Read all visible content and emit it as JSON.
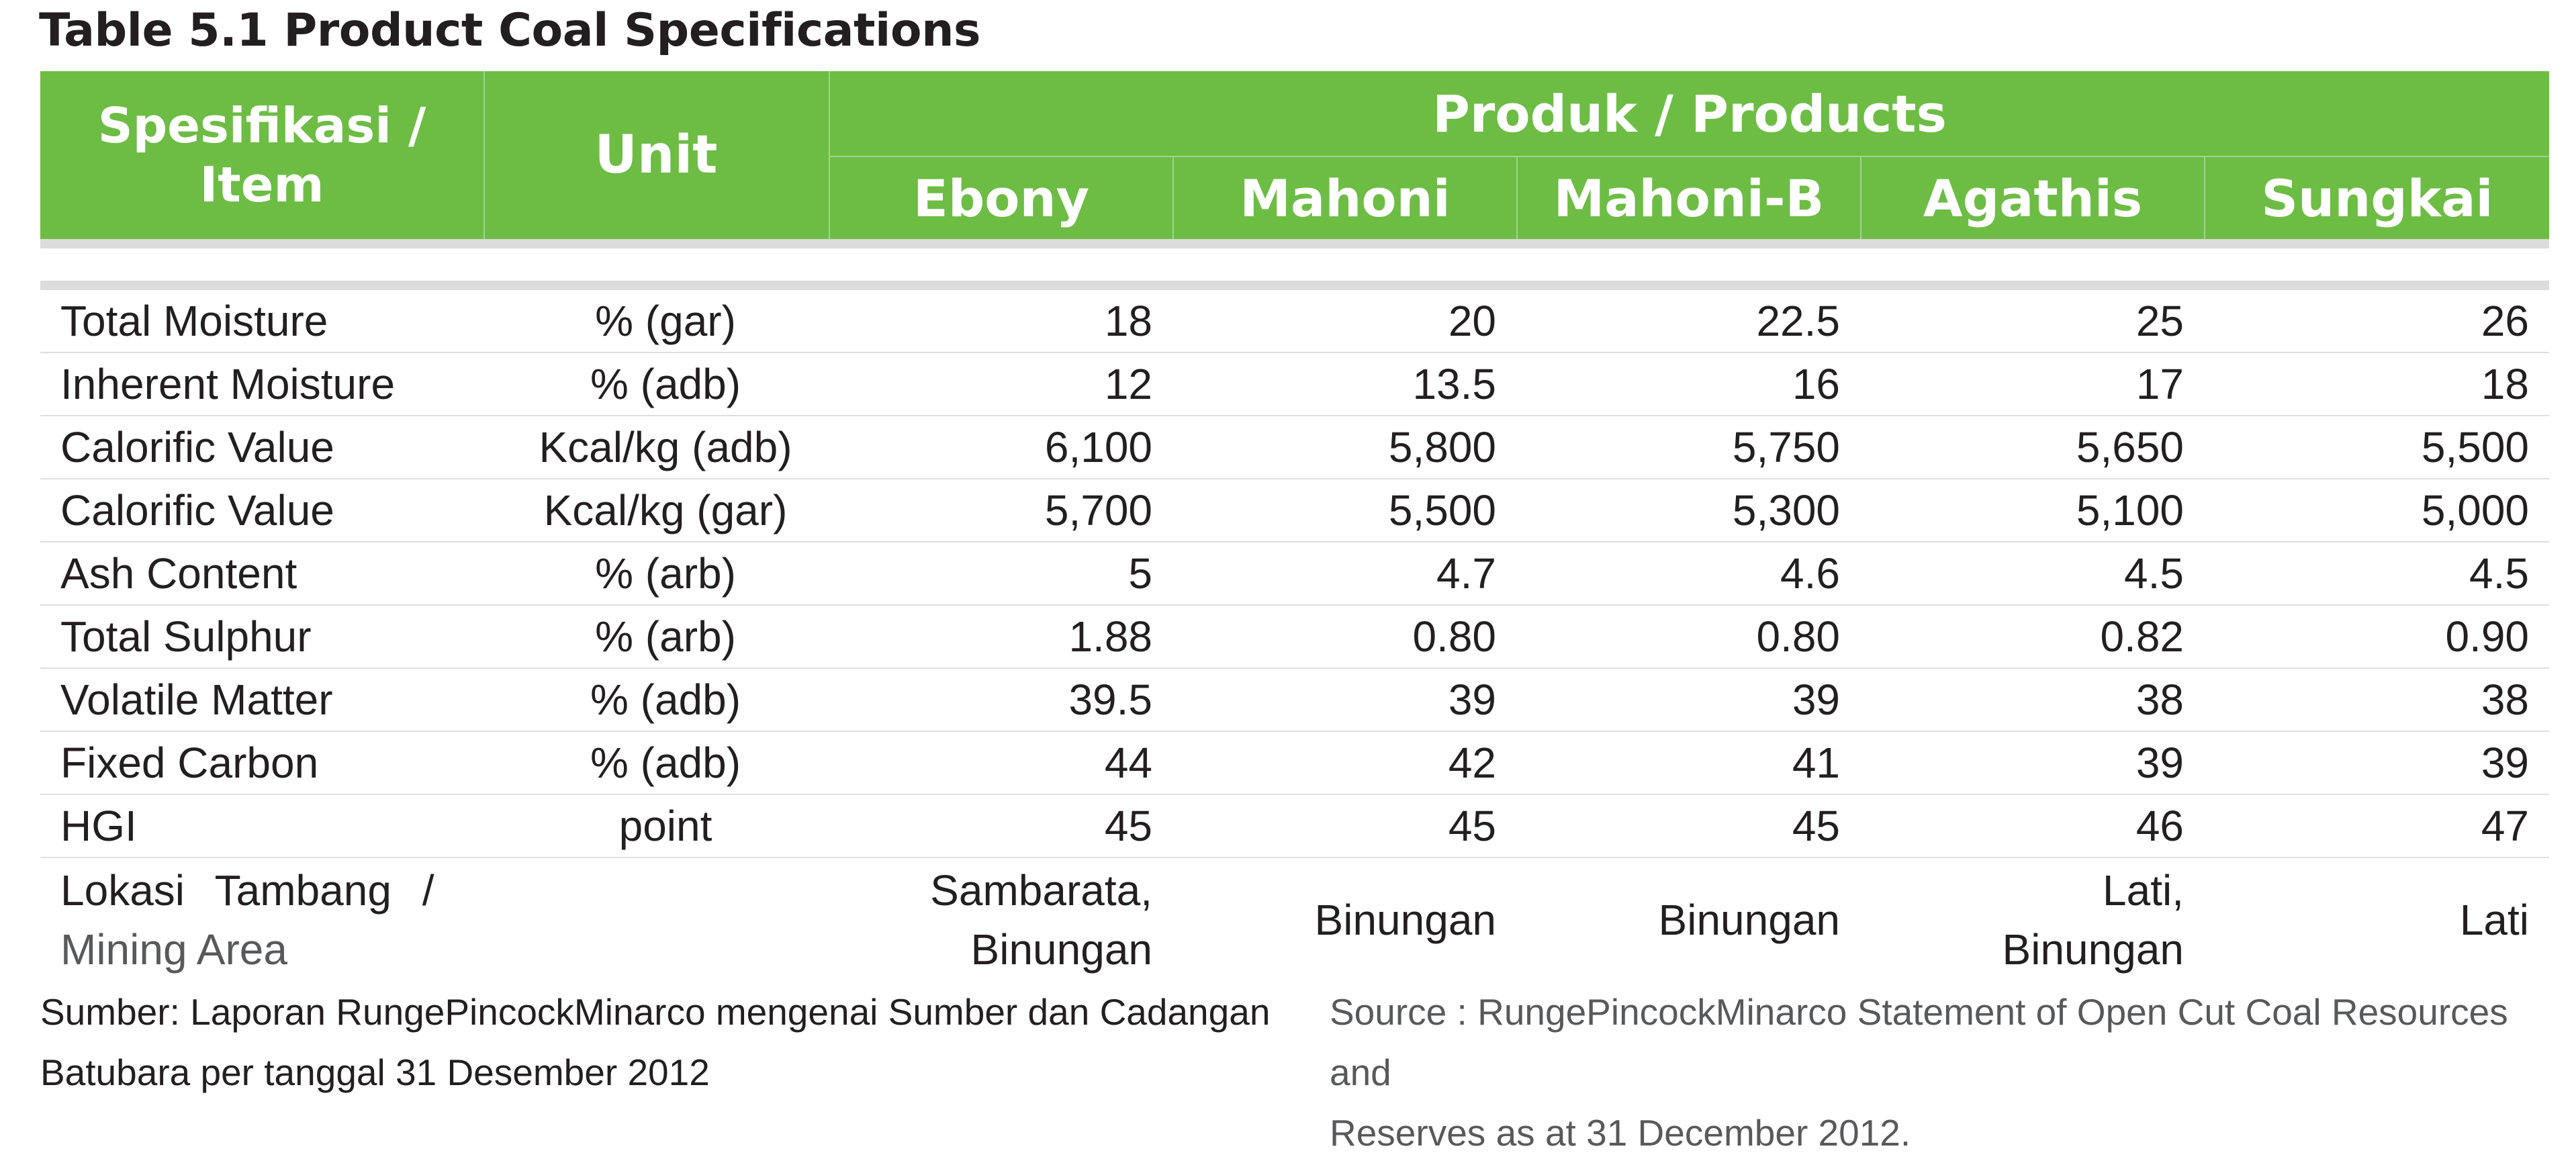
{
  "title": "Table 5.1 Product Coal Specifications",
  "header": {
    "item_l1": "Spesifikasi /",
    "item_l2": "Item",
    "unit": "Unit",
    "products_group": "Produk / Products",
    "products": [
      "Ebony",
      "Mahoni",
      "Mahoni-B",
      "Agathis",
      "Sungkai"
    ]
  },
  "rows": [
    {
      "item": "Total Moisture",
      "unit": "% (gar)",
      "values": [
        "18",
        "20",
        "22.5",
        "25",
        "26"
      ]
    },
    {
      "item": "Inherent Moisture",
      "unit": "% (adb)",
      "values": [
        "12",
        "13.5",
        "16",
        "17",
        "18"
      ]
    },
    {
      "item": "Calorific Value",
      "unit": "Kcal/kg (adb)",
      "values": [
        "6,100",
        "5,800",
        "5,750",
        "5,650",
        "5,500"
      ]
    },
    {
      "item": "Calorific Value",
      "unit": "Kcal/kg (gar)",
      "values": [
        "5,700",
        "5,500",
        "5,300",
        "5,100",
        "5,000"
      ]
    },
    {
      "item": "Ash Content",
      "unit": "% (arb)",
      "values": [
        "5",
        "4.7",
        "4.6",
        "4.5",
        "4.5"
      ]
    },
    {
      "item": "Total Sulphur",
      "unit": "% (arb)",
      "values": [
        "1.88",
        "0.80",
        "0.80",
        "0.82",
        "0.90"
      ]
    },
    {
      "item": "Volatile Matter",
      "unit": "% (adb)",
      "values": [
        "39.5",
        "39",
        "39",
        "38",
        "38"
      ]
    },
    {
      "item": "Fixed Carbon",
      "unit": "% (adb)",
      "values": [
        "44",
        "42",
        "41",
        "39",
        "39"
      ]
    },
    {
      "item": "HGI",
      "unit": "point",
      "values": [
        "45",
        "45",
        "45",
        "46",
        "47"
      ]
    }
  ],
  "location_row": {
    "item_l1": "Lokasi Tambang /",
    "item_l2": "Mining Area",
    "values": [
      {
        "l1": "Sambarata,",
        "l2": "Binungan"
      },
      {
        "l1": "Binungan",
        "l2": ""
      },
      {
        "l1": "Binungan",
        "l2": ""
      },
      {
        "l1": "Lati,",
        "l2": "Binungan"
      },
      {
        "l1": "Lati",
        "l2": ""
      }
    ]
  },
  "footer": {
    "left_l1": "Sumber: Laporan RungePincockMinarco mengenai Sumber dan Cadangan",
    "left_l2": "Batubara per tanggal 31 Desember 2012",
    "right_l1": "Source : RungePincockMinarco Statement of Open Cut Coal Resources and",
    "right_l2": "Reserves as at 31 December 2012."
  },
  "colors": {
    "header_green": "#6dbd45",
    "header_text": "#ffffff",
    "row_rule": "#dedede"
  }
}
